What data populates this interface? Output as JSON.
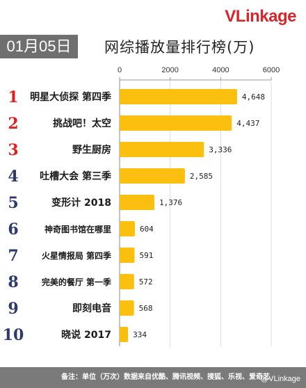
{
  "brand": {
    "v": "VL",
    "rest": "inkage"
  },
  "date_badge": "01月05日",
  "title": "网综播放量排行榜(万)",
  "footer": "备注：单位（万次）数据来自优酷、腾讯视频、搜狐、乐视、爱奇艺",
  "watermark": "@VLinkage",
  "colors": {
    "bar": "#fbbf10",
    "rank_top": "#e02020",
    "rank_other": "#2d3a6b",
    "axis": "#999999"
  },
  "chart_data": {
    "type": "bar",
    "orientation": "horizontal",
    "title": "网综播放量排行榜(万)",
    "xlabel": "",
    "ylabel": "",
    "xlim": [
      0,
      6000
    ],
    "ticks": [
      "0",
      "2000",
      "4000",
      "6000"
    ],
    "tick_values": [
      0,
      2000,
      4000,
      6000
    ],
    "grid": true,
    "ranks": [
      "1",
      "2",
      "3",
      "4",
      "5",
      "6",
      "7",
      "8",
      "9",
      "10"
    ],
    "categories": [
      "明星大侦探 第四季",
      "挑战吧！太空",
      "野生厨房",
      "吐槽大会 第三季",
      "变形计 2018",
      "神奇图书馆在哪里",
      "火星情报局 第四季",
      "完美的餐厅 第一季",
      "即刻电音",
      "晓说 2017"
    ],
    "values": [
      4648,
      4437,
      3336,
      2585,
      1376,
      604,
      591,
      572,
      568,
      334
    ],
    "value_labels": [
      "4,648",
      "4,437",
      "3,336",
      "2,585",
      "1,376",
      "604",
      "591",
      "572",
      "568",
      "334"
    ]
  }
}
